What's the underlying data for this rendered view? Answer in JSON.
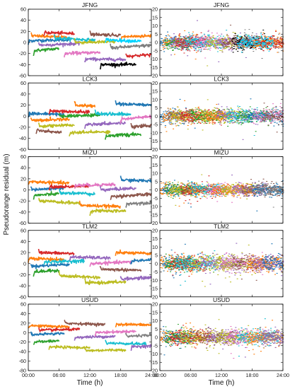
{
  "figure": {
    "ylabel": "Pseudorange residual (m)",
    "xlabel": "Time (h)"
  },
  "chart_data": {
    "type": "scatter",
    "x_ticks": [
      "00:00",
      "06:00",
      "12:00",
      "18:00",
      "24:00"
    ],
    "xlim_hours": [
      0,
      24
    ],
    "stations": [
      "JFNG",
      "LCK3",
      "MIZU",
      "TLM2",
      "USUD"
    ],
    "left_ylim": {
      "JFNG": [
        -60,
        60
      ],
      "LCK3": [
        -60,
        60
      ],
      "MIZU": [
        -60,
        60
      ],
      "TLM2": [
        -60,
        60
      ],
      "USUD": [
        -80,
        60
      ]
    },
    "left_yticks": {
      "JFNG": [
        60,
        40,
        20,
        0,
        -20,
        -40,
        -60
      ],
      "LCK3": [
        60,
        40,
        20,
        0,
        -20,
        -40,
        -60
      ],
      "MIZU": [
        60,
        40,
        20,
        0,
        -20,
        -40,
        -60
      ],
      "TLM2": [
        60,
        40,
        20,
        0,
        -20,
        -40,
        -60
      ],
      "USUD": [
        60,
        40,
        20,
        0,
        -20,
        -40,
        -60,
        -80
      ]
    },
    "right_ylim": [
      -20,
      20
    ],
    "right_yticks": [
      20,
      15,
      10,
      5,
      0,
      -5,
      -10,
      -15,
      -20
    ],
    "colors": [
      "#1f77b4",
      "#ff7f0e",
      "#2ca02c",
      "#d62728",
      "#9467bd",
      "#8c564b",
      "#e377c2",
      "#7f7f7f",
      "#bcbd22",
      "#17becf",
      "#00d4ff",
      "#000000"
    ],
    "left_arcs": {
      "JFNG": [
        {
          "t0": 0.0,
          "t1": 8.0,
          "y": 3,
          "drift": 2,
          "c": 0
        },
        {
          "t0": 0.5,
          "t1": 7.5,
          "y": 12,
          "drift": -3,
          "c": 1
        },
        {
          "t0": 1.0,
          "t1": 6.0,
          "y": -15,
          "drift": 4,
          "c": 2
        },
        {
          "t0": 2.0,
          "t1": 10.0,
          "y": -5,
          "drift": 3,
          "c": 4
        },
        {
          "t0": 3.0,
          "t1": 9.0,
          "y": 18,
          "drift": -2,
          "c": 3
        },
        {
          "t0": 5.0,
          "t1": 13.0,
          "y": 8,
          "drift": -4,
          "c": 9
        },
        {
          "t0": 7.0,
          "t1": 14.0,
          "y": -20,
          "drift": 2,
          "c": 6
        },
        {
          "t0": 9.0,
          "t1": 17.0,
          "y": 0,
          "drift": 1,
          "c": 8
        },
        {
          "t0": 11.0,
          "t1": 19.0,
          "y": -30,
          "drift": -1,
          "c": 4
        },
        {
          "t0": 12.0,
          "t1": 18.0,
          "y": 15,
          "drift": -2,
          "c": 5
        },
        {
          "t0": 14.0,
          "t1": 21.0,
          "y": -40,
          "drift": 0,
          "c": 11
        },
        {
          "t0": 16.0,
          "t1": 24.0,
          "y": -10,
          "drift": 5,
          "c": 7
        },
        {
          "t0": 18.0,
          "t1": 24.0,
          "y": 10,
          "drift": 2,
          "c": 1
        },
        {
          "t0": 19.0,
          "t1": 24.0,
          "y": -25,
          "drift": 3,
          "c": 3
        },
        {
          "t0": 15.0,
          "t1": 22.0,
          "y": 5,
          "drift": -3,
          "c": 10
        }
      ],
      "LCK3": [
        {
          "t0": 0.0,
          "t1": 7.0,
          "y": 5,
          "drift": -2,
          "c": 0
        },
        {
          "t0": 0.5,
          "t1": 8.0,
          "y": -8,
          "drift": 3,
          "c": 1
        },
        {
          "t0": 1.5,
          "t1": 6.5,
          "y": -25,
          "drift": -5,
          "c": 5
        },
        {
          "t0": 2.0,
          "t1": 9.0,
          "y": -18,
          "drift": 2,
          "c": 8
        },
        {
          "t0": 4.0,
          "t1": 12.0,
          "y": 10,
          "drift": -3,
          "c": 3
        },
        {
          "t0": 6.0,
          "t1": 14.0,
          "y": 0,
          "drift": 2,
          "c": 2
        },
        {
          "t0": 8.0,
          "t1": 16.0,
          "y": -30,
          "drift": 2,
          "c": 8
        },
        {
          "t0": 9.0,
          "t1": 13.0,
          "y": 20,
          "drift": -2,
          "c": 1
        },
        {
          "t0": 11.0,
          "t1": 19.0,
          "y": -15,
          "drift": 3,
          "c": 4
        },
        {
          "t0": 13.0,
          "t1": 20.0,
          "y": 5,
          "drift": -2,
          "c": 9
        },
        {
          "t0": 15.0,
          "t1": 22.0,
          "y": -35,
          "drift": 2,
          "c": 2
        },
        {
          "t0": 17.0,
          "t1": 24.0,
          "y": 22,
          "drift": -2,
          "c": 0
        },
        {
          "t0": 18.0,
          "t1": 24.0,
          "y": -5,
          "drift": 4,
          "c": 6
        },
        {
          "t0": 20.0,
          "t1": 24.0,
          "y": -20,
          "drift": 3,
          "c": 5
        }
      ],
      "MIZU": [
        {
          "t0": 0.0,
          "t1": 8.0,
          "y": 15,
          "drift": -3,
          "c": 1
        },
        {
          "t0": 0.5,
          "t1": 7.0,
          "y": 0,
          "drift": 4,
          "c": 0
        },
        {
          "t0": 1.0,
          "t1": 6.0,
          "y": -10,
          "drift": 3,
          "c": 2
        },
        {
          "t0": 2.0,
          "t1": 10.0,
          "y": -20,
          "drift": -4,
          "c": 8
        },
        {
          "t0": 4.0,
          "t1": 12.0,
          "y": 5,
          "drift": 2,
          "c": 3
        },
        {
          "t0": 6.0,
          "t1": 13.0,
          "y": -5,
          "drift": -2,
          "c": 9
        },
        {
          "t0": 9.0,
          "t1": 17.0,
          "y": 8,
          "drift": 2,
          "c": 6
        },
        {
          "t0": 10.0,
          "t1": 18.0,
          "y": -28,
          "drift": -2,
          "c": 1
        },
        {
          "t0": 12.0,
          "t1": 19.0,
          "y": -38,
          "drift": 0,
          "c": 8
        },
        {
          "t0": 14.0,
          "t1": 21.0,
          "y": 0,
          "drift": 3,
          "c": 4
        },
        {
          "t0": 16.0,
          "t1": 24.0,
          "y": -12,
          "drift": 4,
          "c": 5
        },
        {
          "t0": 18.0,
          "t1": 24.0,
          "y": 18,
          "drift": -2,
          "c": 0
        },
        {
          "t0": 19.0,
          "t1": 24.0,
          "y": -25,
          "drift": 2,
          "c": 7
        }
      ],
      "TLM2": [
        {
          "t0": 0.0,
          "t1": 7.0,
          "y": 10,
          "drift": -3,
          "c": 1
        },
        {
          "t0": 0.5,
          "t1": 8.0,
          "y": -5,
          "drift": 4,
          "c": 0
        },
        {
          "t0": 1.0,
          "t1": 6.0,
          "y": -15,
          "drift": 3,
          "c": 2
        },
        {
          "t0": 2.0,
          "t1": 9.0,
          "y": 20,
          "drift": -2,
          "c": 3
        },
        {
          "t0": 3.0,
          "t1": 11.0,
          "y": 3,
          "drift": 2,
          "c": 9
        },
        {
          "t0": 6.0,
          "t1": 14.0,
          "y": -22,
          "drift": -3,
          "c": 8
        },
        {
          "t0": 8.0,
          "t1": 16.0,
          "y": 12,
          "drift": -2,
          "c": 4
        },
        {
          "t0": 11.0,
          "t1": 19.0,
          "y": -35,
          "drift": 2,
          "c": 8
        },
        {
          "t0": 12.0,
          "t1": 20.0,
          "y": 0,
          "drift": 3,
          "c": 6
        },
        {
          "t0": 14.0,
          "t1": 22.0,
          "y": -10,
          "drift": -2,
          "c": 5
        },
        {
          "t0": 17.0,
          "t1": 24.0,
          "y": 20,
          "drift": -2,
          "c": 1
        },
        {
          "t0": 18.0,
          "t1": 24.0,
          "y": -28,
          "drift": 3,
          "c": 4
        },
        {
          "t0": 20.0,
          "t1": 24.0,
          "y": 5,
          "drift": 2,
          "c": 0
        }
      ],
      "USUD": [
        {
          "t0": 0.0,
          "t1": 8.0,
          "y": 15,
          "drift": -3,
          "c": 1
        },
        {
          "t0": 0.5,
          "t1": 7.0,
          "y": -5,
          "drift": 4,
          "c": 0
        },
        {
          "t0": 1.0,
          "t1": 6.0,
          "y": -20,
          "drift": 3,
          "c": 2
        },
        {
          "t0": 2.0,
          "t1": 10.0,
          "y": 5,
          "drift": 2,
          "c": 3
        },
        {
          "t0": 4.0,
          "t1": 12.0,
          "y": -30,
          "drift": -2,
          "c": 8
        },
        {
          "t0": 7.0,
          "t1": 15.0,
          "y": 20,
          "drift": -3,
          "c": 5
        },
        {
          "t0": 9.0,
          "t1": 17.0,
          "y": -10,
          "drift": 2,
          "c": 4
        },
        {
          "t0": 11.0,
          "t1": 19.0,
          "y": -38,
          "drift": 2,
          "c": 8
        },
        {
          "t0": 13.0,
          "t1": 21.0,
          "y": 0,
          "drift": 3,
          "c": 6
        },
        {
          "t0": 15.0,
          "t1": 23.0,
          "y": -22,
          "drift": -2,
          "c": 9
        },
        {
          "t0": 17.0,
          "t1": 24.0,
          "y": 18,
          "drift": -2,
          "c": 1
        },
        {
          "t0": 19.0,
          "t1": 24.0,
          "y": -8,
          "drift": 3,
          "c": 7
        },
        {
          "t0": 20.0,
          "t1": 24.0,
          "y": -30,
          "drift": 2,
          "c": 4
        }
      ]
    },
    "right_noise_std": {
      "JFNG": 2.0,
      "LCK3": 2.0,
      "MIZU": 1.8,
      "TLM2": 2.4,
      "USUD": 2.2
    }
  }
}
